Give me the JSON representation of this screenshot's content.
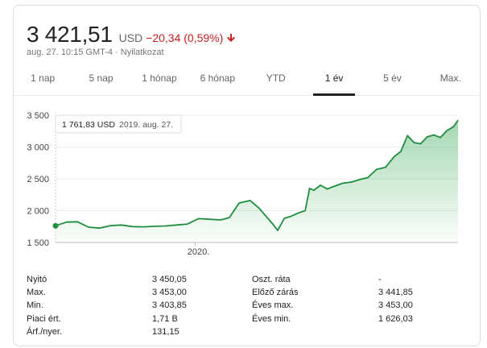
{
  "quote": {
    "price": "3 421,51",
    "currency": "USD",
    "change": "−20,34 (0,59%)",
    "direction": "down",
    "timestamp": "aug. 27. 10:15 GMT-4",
    "separator": " · ",
    "disclaimer": "Nyilatkozat"
  },
  "tabs": [
    {
      "label": "1 nap",
      "active": false
    },
    {
      "label": "5 nap",
      "active": false
    },
    {
      "label": "1 hónap",
      "active": false
    },
    {
      "label": "6 hónap",
      "active": false
    },
    {
      "label": "YTD",
      "active": false
    },
    {
      "label": "1 év",
      "active": true
    },
    {
      "label": "5 év",
      "active": false
    },
    {
      "label": "Max.",
      "active": false
    }
  ],
  "tooltip": {
    "value": "1 761,83 USD",
    "date": "2019. aug. 27."
  },
  "colors": {
    "line": "#1e8e3e",
    "area": "#34a853",
    "negative": "#c5221f",
    "grid": "#ebebeb"
  },
  "chart_data": {
    "type": "area",
    "y_ticks": [
      "3 500",
      "3 000",
      "2 500",
      "2 000",
      "1 500"
    ],
    "y_tick_values": [
      3500,
      3000,
      2500,
      2000,
      1500
    ],
    "x_tick_labels": [
      "2020."
    ],
    "ylim": [
      1500,
      3500
    ],
    "x_range": [
      "2019-08-27",
      "2020-08-27"
    ],
    "series": [
      {
        "x": [
          "2019-08-27",
          "2019-09-06",
          "2019-09-16",
          "2019-09-26",
          "2019-10-06",
          "2019-10-16",
          "2019-10-26",
          "2019-11-05",
          "2019-11-15",
          "2019-11-25",
          "2019-12-05",
          "2019-12-15",
          "2019-12-25",
          "2020-01-04",
          "2020-01-14",
          "2020-01-24",
          "2020-02-01",
          "2020-02-10",
          "2020-02-20",
          "2020-02-28",
          "2020-03-06",
          "2020-03-12",
          "2020-03-16",
          "2020-03-22",
          "2020-03-28",
          "2020-04-04",
          "2020-04-10",
          "2020-04-14",
          "2020-04-18",
          "2020-04-24",
          "2020-04-30",
          "2020-05-06",
          "2020-05-14",
          "2020-05-22",
          "2020-05-30",
          "2020-06-06",
          "2020-06-14",
          "2020-06-22",
          "2020-06-30",
          "2020-07-06",
          "2020-07-12",
          "2020-07-18",
          "2020-07-24",
          "2020-07-30",
          "2020-08-05",
          "2020-08-11",
          "2020-08-17",
          "2020-08-23",
          "2020-08-27"
        ],
        "values": [
          1761.83,
          1820,
          1825,
          1740,
          1725,
          1765,
          1775,
          1750,
          1745,
          1755,
          1760,
          1775,
          1790,
          1875,
          1865,
          1855,
          1890,
          2120,
          2160,
          2040,
          1900,
          1780,
          1690,
          1880,
          1910,
          1965,
          2000,
          2350,
          2320,
          2400,
          2340,
          2380,
          2430,
          2450,
          2490,
          2520,
          2650,
          2680,
          2850,
          2930,
          3180,
          3070,
          3050,
          3160,
          3190,
          3150,
          3260,
          3320,
          3421.51
        ]
      }
    ]
  },
  "stats": {
    "left": [
      {
        "label": "Nyitó",
        "value": "3 450,05"
      },
      {
        "label": "Max.",
        "value": "3 453,00"
      },
      {
        "label": "Min.",
        "value": "3 403,85"
      },
      {
        "label": "Piaci ért.",
        "value": "1,71 B"
      },
      {
        "label": "Árf./nyer.",
        "value": "131,15"
      }
    ],
    "right": [
      {
        "label": "Oszt. ráta",
        "value": "-"
      },
      {
        "label": "Előző zárás",
        "value": "3 441,85"
      },
      {
        "label": "Éves max.",
        "value": "3 453,00"
      },
      {
        "label": "Éves min.",
        "value": "1 626,03"
      }
    ]
  }
}
